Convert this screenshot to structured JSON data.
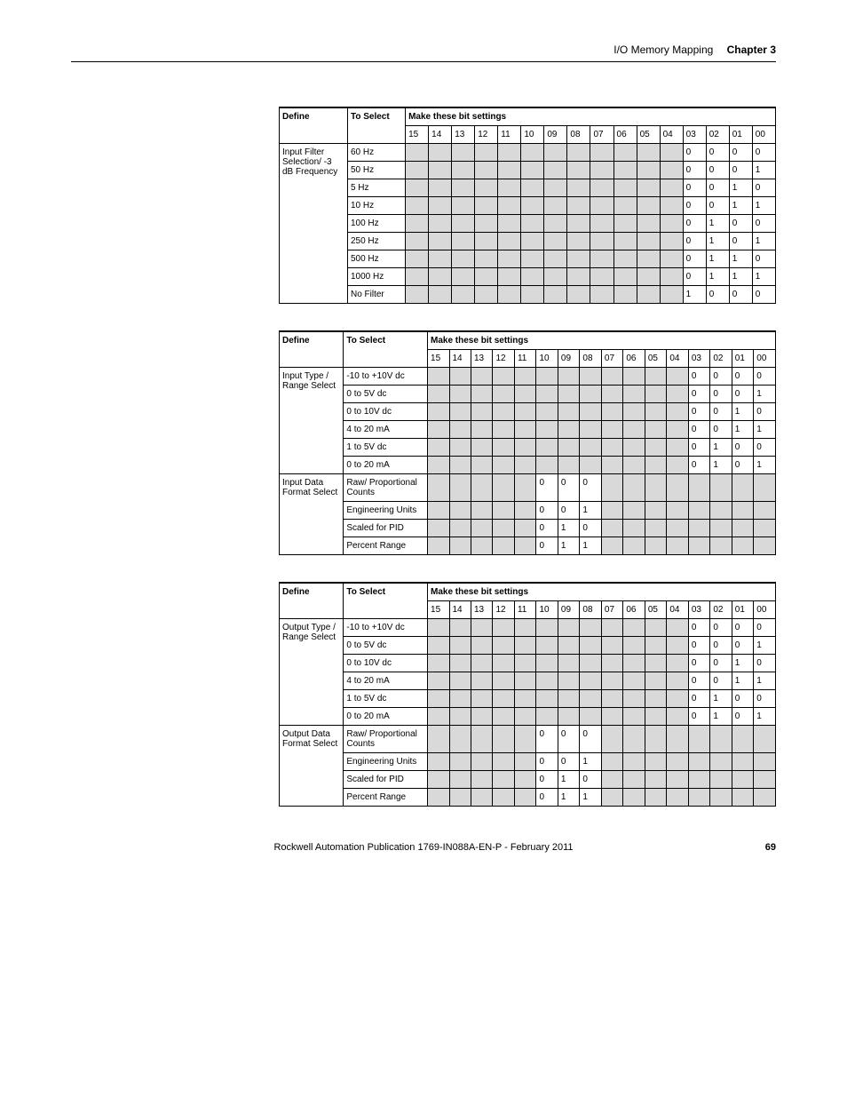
{
  "header": {
    "section": "I/O Memory Mapping",
    "chapter": "Chapter 3"
  },
  "bit_labels": [
    "15",
    "14",
    "13",
    "12",
    "11",
    "10",
    "09",
    "08",
    "07",
    "06",
    "05",
    "04",
    "03",
    "02",
    "01",
    "00"
  ],
  "table1": {
    "define_header": "Define",
    "select_header": "To Select",
    "settings_header": "Make these bit settings",
    "define_label": "Input Filter Selection/ -3 dB Frequency",
    "rows": [
      {
        "label": "60 Hz",
        "grey": [
          0,
          1,
          2,
          3,
          4,
          5,
          6,
          7,
          8,
          9,
          10,
          11
        ],
        "vals": {
          "12": "0",
          "13": "0",
          "14": "0",
          "15": "0"
        }
      },
      {
        "label": "50 Hz",
        "grey": [
          0,
          1,
          2,
          3,
          4,
          5,
          6,
          7,
          8,
          9,
          10,
          11
        ],
        "vals": {
          "12": "0",
          "13": "0",
          "14": "0",
          "15": "1"
        }
      },
      {
        "label": "5 Hz",
        "grey": [
          0,
          1,
          2,
          3,
          4,
          5,
          6,
          7,
          8,
          9,
          10,
          11
        ],
        "vals": {
          "12": "0",
          "13": "0",
          "14": "1",
          "15": "0"
        }
      },
      {
        "label": "10 Hz",
        "grey": [
          0,
          1,
          2,
          3,
          4,
          5,
          6,
          7,
          8,
          9,
          10,
          11
        ],
        "vals": {
          "12": "0",
          "13": "0",
          "14": "1",
          "15": "1"
        }
      },
      {
        "label": "100 Hz",
        "grey": [
          0,
          1,
          2,
          3,
          4,
          5,
          6,
          7,
          8,
          9,
          10,
          11
        ],
        "vals": {
          "12": "0",
          "13": "1",
          "14": "0",
          "15": "0"
        }
      },
      {
        "label": "250 Hz",
        "grey": [
          0,
          1,
          2,
          3,
          4,
          5,
          6,
          7,
          8,
          9,
          10,
          11
        ],
        "vals": {
          "12": "0",
          "13": "1",
          "14": "0",
          "15": "1"
        }
      },
      {
        "label": "500 Hz",
        "grey": [
          0,
          1,
          2,
          3,
          4,
          5,
          6,
          7,
          8,
          9,
          10,
          11
        ],
        "vals": {
          "12": "0",
          "13": "1",
          "14": "1",
          "15": "0"
        }
      },
      {
        "label": "1000 Hz",
        "grey": [
          0,
          1,
          2,
          3,
          4,
          5,
          6,
          7,
          8,
          9,
          10,
          11
        ],
        "vals": {
          "12": "0",
          "13": "1",
          "14": "1",
          "15": "1"
        }
      },
      {
        "label": "No Filter",
        "grey": [
          0,
          1,
          2,
          3,
          4,
          5,
          6,
          7,
          8,
          9,
          10,
          11
        ],
        "vals": {
          "12": "1",
          "13": "0",
          "14": "0",
          "15": "0"
        }
      }
    ]
  },
  "table2": {
    "define_header": "Define",
    "select_header": "To Select",
    "settings_header": "Make these bit settings",
    "groups": [
      {
        "define": "Input Type / Range Select",
        "rows": [
          {
            "label": "-10 to +10V dc",
            "grey": [
              0,
              1,
              2,
              3,
              4,
              5,
              6,
              7,
              8,
              9,
              10,
              11
            ],
            "vals": {
              "12": "0",
              "13": "0",
              "14": "0",
              "15": "0"
            }
          },
          {
            "label": "0 to 5V dc",
            "grey": [
              0,
              1,
              2,
              3,
              4,
              5,
              6,
              7,
              8,
              9,
              10,
              11
            ],
            "vals": {
              "12": "0",
              "13": "0",
              "14": "0",
              "15": "1"
            }
          },
          {
            "label": "0 to 10V dc",
            "grey": [
              0,
              1,
              2,
              3,
              4,
              5,
              6,
              7,
              8,
              9,
              10,
              11
            ],
            "vals": {
              "12": "0",
              "13": "0",
              "14": "1",
              "15": "0"
            }
          },
          {
            "label": "4 to 20 mA",
            "grey": [
              0,
              1,
              2,
              3,
              4,
              5,
              6,
              7,
              8,
              9,
              10,
              11
            ],
            "vals": {
              "12": "0",
              "13": "0",
              "14": "1",
              "15": "1"
            }
          },
          {
            "label": "1 to 5V dc",
            "grey": [
              0,
              1,
              2,
              3,
              4,
              5,
              6,
              7,
              8,
              9,
              10,
              11
            ],
            "vals": {
              "12": "0",
              "13": "1",
              "14": "0",
              "15": "0"
            }
          },
          {
            "label": "0 to 20 mA",
            "grey": [
              0,
              1,
              2,
              3,
              4,
              5,
              6,
              7,
              8,
              9,
              10,
              11
            ],
            "vals": {
              "12": "0",
              "13": "1",
              "14": "0",
              "15": "1"
            }
          }
        ]
      },
      {
        "define": "Input Data Format Select",
        "rows": [
          {
            "label": "Raw/ Proportional Counts",
            "grey": [
              0,
              1,
              2,
              3,
              4,
              8,
              9,
              10,
              11,
              12,
              13,
              14,
              15
            ],
            "vals": {
              "5": "0",
              "6": "0",
              "7": "0"
            }
          },
          {
            "label": "Engineering Units",
            "grey": [
              0,
              1,
              2,
              3,
              4,
              8,
              9,
              10,
              11,
              12,
              13,
              14,
              15
            ],
            "vals": {
              "5": "0",
              "6": "0",
              "7": "1"
            }
          },
          {
            "label": "Scaled for PID",
            "grey": [
              0,
              1,
              2,
              3,
              4,
              8,
              9,
              10,
              11,
              12,
              13,
              14,
              15
            ],
            "vals": {
              "5": "0",
              "6": "1",
              "7": "0"
            }
          },
          {
            "label": "Percent Range",
            "grey": [
              0,
              1,
              2,
              3,
              4,
              8,
              9,
              10,
              11,
              12,
              13,
              14,
              15
            ],
            "vals": {
              "5": "0",
              "6": "1",
              "7": "1"
            }
          }
        ]
      }
    ]
  },
  "table3": {
    "define_header": "Define",
    "select_header": "To Select",
    "settings_header": "Make these bit settings",
    "groups": [
      {
        "define": "Output Type / Range Select",
        "rows": [
          {
            "label": "-10 to +10V dc",
            "grey": [
              0,
              1,
              2,
              3,
              4,
              5,
              6,
              7,
              8,
              9,
              10,
              11
            ],
            "vals": {
              "12": "0",
              "13": "0",
              "14": "0",
              "15": "0"
            }
          },
          {
            "label": "0 to 5V dc",
            "grey": [
              0,
              1,
              2,
              3,
              4,
              5,
              6,
              7,
              8,
              9,
              10,
              11
            ],
            "vals": {
              "12": "0",
              "13": "0",
              "14": "0",
              "15": "1"
            }
          },
          {
            "label": "0 to 10V dc",
            "grey": [
              0,
              1,
              2,
              3,
              4,
              5,
              6,
              7,
              8,
              9,
              10,
              11
            ],
            "vals": {
              "12": "0",
              "13": "0",
              "14": "1",
              "15": "0"
            }
          },
          {
            "label": "4 to 20 mA",
            "grey": [
              0,
              1,
              2,
              3,
              4,
              5,
              6,
              7,
              8,
              9,
              10,
              11
            ],
            "vals": {
              "12": "0",
              "13": "0",
              "14": "1",
              "15": "1"
            }
          },
          {
            "label": "1 to 5V dc",
            "grey": [
              0,
              1,
              2,
              3,
              4,
              5,
              6,
              7,
              8,
              9,
              10,
              11
            ],
            "vals": {
              "12": "0",
              "13": "1",
              "14": "0",
              "15": "0"
            }
          },
          {
            "label": "0 to 20 mA",
            "grey": [
              0,
              1,
              2,
              3,
              4,
              5,
              6,
              7,
              8,
              9,
              10,
              11
            ],
            "vals": {
              "12": "0",
              "13": "1",
              "14": "0",
              "15": "1"
            }
          }
        ]
      },
      {
        "define": "Output Data Format Select",
        "rows": [
          {
            "label": "Raw/ Proportional Counts",
            "grey": [
              0,
              1,
              2,
              3,
              4,
              8,
              9,
              10,
              11,
              12,
              13,
              14,
              15
            ],
            "vals": {
              "5": "0",
              "6": "0",
              "7": "0"
            }
          },
          {
            "label": "Engineering Units",
            "grey": [
              0,
              1,
              2,
              3,
              4,
              8,
              9,
              10,
              11,
              12,
              13,
              14,
              15
            ],
            "vals": {
              "5": "0",
              "6": "0",
              "7": "1"
            }
          },
          {
            "label": "Scaled for PID",
            "grey": [
              0,
              1,
              2,
              3,
              4,
              8,
              9,
              10,
              11,
              12,
              13,
              14,
              15
            ],
            "vals": {
              "5": "0",
              "6": "1",
              "7": "0"
            }
          },
          {
            "label": "Percent Range",
            "grey": [
              0,
              1,
              2,
              3,
              4,
              8,
              9,
              10,
              11,
              12,
              13,
              14,
              15
            ],
            "vals": {
              "5": "0",
              "6": "1",
              "7": "1"
            }
          }
        ]
      }
    ]
  },
  "footer": {
    "pub": "Rockwell Automation Publication 1769-IN088A-EN-P - February 2011",
    "page": "69"
  },
  "colors": {
    "grey_fill": "#d9d9d9",
    "border": "#000000",
    "text": "#000000",
    "bg": "#ffffff"
  }
}
